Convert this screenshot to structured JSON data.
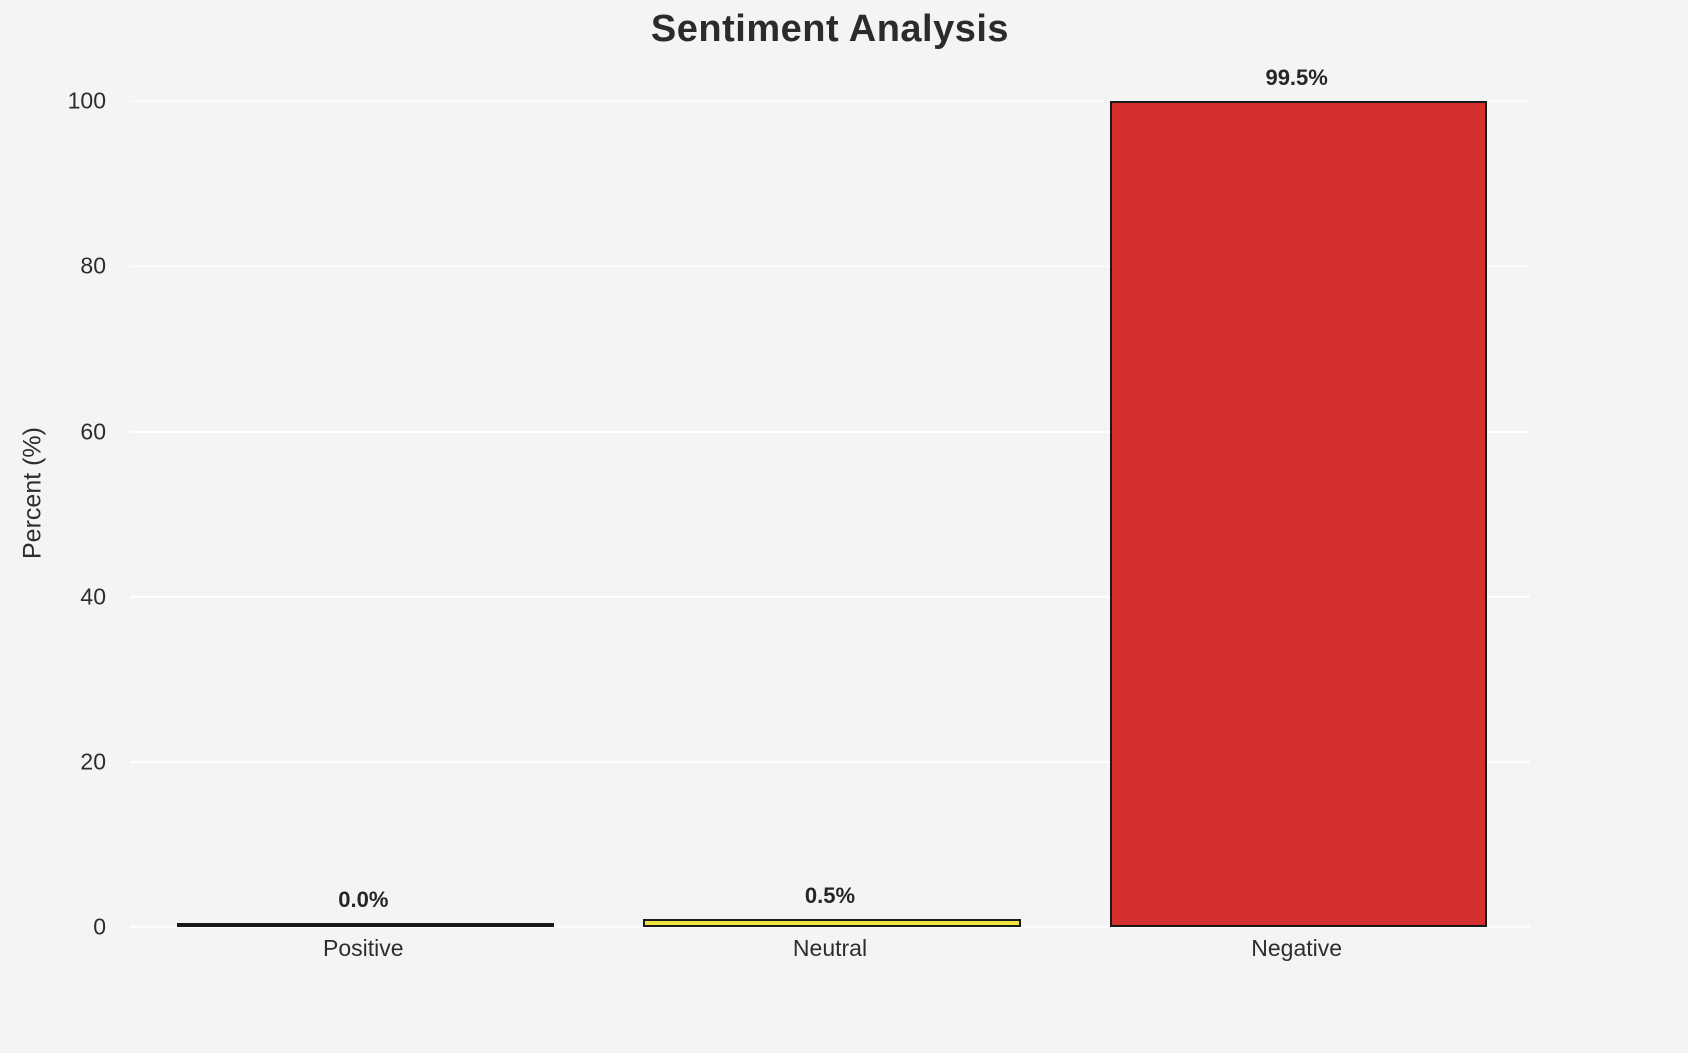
{
  "chart_data": {
    "type": "bar",
    "title": "Sentiment Analysis",
    "xlabel": "",
    "ylabel": "Percent (%)",
    "categories": [
      "Positive",
      "Neutral",
      "Negative"
    ],
    "values": [
      0.0,
      0.5,
      99.5
    ],
    "value_labels": [
      "0.0%",
      "0.5%",
      "99.5%"
    ],
    "bar_colors": [
      "#3a923a",
      "#f0e442",
      "#d62f2f"
    ],
    "bar_edge_color": "#1a1a1a",
    "ylim": [
      0,
      105
    ],
    "yticks": [
      0,
      20,
      40,
      60,
      80,
      100
    ],
    "grid": true,
    "legend": false,
    "background_color": "#f4f4f5",
    "gridline_color": "#ffffff",
    "text_color": "#2d2d2d"
  }
}
